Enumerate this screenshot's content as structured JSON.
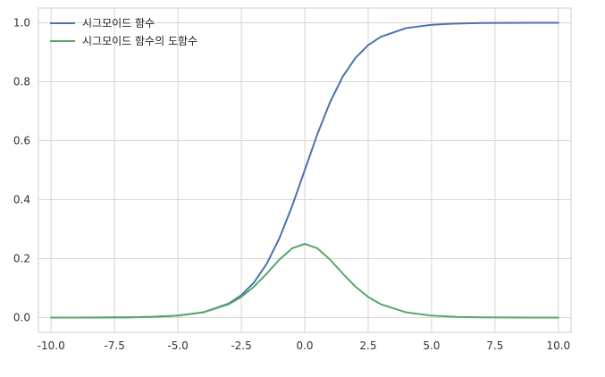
{
  "chart_data": {
    "type": "line",
    "title": "",
    "xlabel": "",
    "ylabel": "",
    "xlim": [
      -10.5,
      10.5
    ],
    "ylim": [
      -0.05,
      1.05
    ],
    "x_ticks": [
      "-10.0",
      "-7.5",
      "-5.0",
      "-2.5",
      "0.0",
      "2.5",
      "5.0",
      "7.5",
      "10.0"
    ],
    "y_ticks": [
      "0.0",
      "0.2",
      "0.4",
      "0.6",
      "0.8",
      "1.0"
    ],
    "grid": true,
    "legend_position": "top-left",
    "series": [
      {
        "name": "시그모이드 함수",
        "color": "#4c72b0",
        "x": [
          -10,
          -9,
          -8,
          -7,
          -6,
          -5,
          -4,
          -3,
          -2.5,
          -2,
          -1.5,
          -1,
          -0.5,
          0,
          0.5,
          1,
          1.5,
          2,
          2.5,
          3,
          4,
          5,
          6,
          7,
          8,
          9,
          10
        ],
        "y": [
          4.54e-05,
          0.0001234,
          0.0003354,
          0.000911,
          0.002473,
          0.006693,
          0.017986,
          0.047426,
          0.075858,
          0.119203,
          0.182426,
          0.268941,
          0.377541,
          0.5,
          0.622459,
          0.731059,
          0.817574,
          0.880797,
          0.924142,
          0.952574,
          0.982014,
          0.993307,
          0.997527,
          0.999089,
          0.999665,
          0.999877,
          0.999955
        ]
      },
      {
        "name": "시그모이드 함수의 도함수",
        "color": "#55a868",
        "x": [
          -10,
          -9,
          -8,
          -7,
          -6,
          -5,
          -4,
          -3,
          -2.5,
          -2,
          -1.5,
          -1,
          -0.5,
          0,
          0.5,
          1,
          1.5,
          2,
          2.5,
          3,
          4,
          5,
          6,
          7,
          8,
          9,
          10
        ],
        "y": [
          4.54e-05,
          0.0001234,
          0.0003353,
          0.00091,
          0.002467,
          0.006648,
          0.017663,
          0.045177,
          0.070104,
          0.104994,
          0.149146,
          0.196612,
          0.235004,
          0.25,
          0.235004,
          0.196612,
          0.149146,
          0.104994,
          0.070104,
          0.045177,
          0.017663,
          0.006648,
          0.002467,
          0.00091,
          0.0003353,
          0.0001234,
          4.54e-05
        ]
      }
    ]
  }
}
